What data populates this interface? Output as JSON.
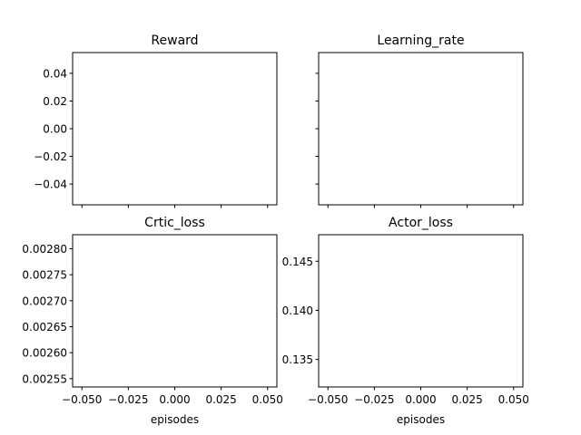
{
  "chart_data": [
    {
      "type": "line",
      "title": "Reward",
      "xlabel": "",
      "ylabel": "",
      "x": [],
      "series": [
        {
          "values": []
        }
      ],
      "xlim": [
        -0.055,
        0.055
      ],
      "ylim": [
        -0.055,
        0.055
      ],
      "xticks": [
        -0.05,
        -0.025,
        0.0,
        0.025,
        0.05
      ],
      "xtick_labels": [],
      "yticks": [
        -0.04,
        -0.02,
        0.0,
        0.02,
        0.04
      ],
      "ytick_labels": [
        "−0.04",
        "−0.02",
        "0.00",
        "0.02",
        "0.04"
      ],
      "grid": false
    },
    {
      "type": "line",
      "title": "Learning_rate",
      "xlabel": "",
      "ylabel": "",
      "x": [],
      "series": [
        {
          "values": []
        }
      ],
      "xlim": [
        -0.055,
        0.055
      ],
      "ylim": [
        -0.055,
        0.055
      ],
      "xticks": [
        -0.05,
        -0.025,
        0.0,
        0.025,
        0.05
      ],
      "xtick_labels": [],
      "yticks": [
        -0.04,
        -0.02,
        0.0,
        0.02,
        0.04
      ],
      "ytick_labels": [],
      "grid": false
    },
    {
      "type": "line",
      "title": "Crtic_loss",
      "xlabel": "episodes",
      "ylabel": "",
      "x": [],
      "series": [
        {
          "values": []
        }
      ],
      "xlim": [
        -0.055,
        0.055
      ],
      "ylim": [
        0.002534,
        0.002827
      ],
      "xticks": [
        -0.05,
        -0.025,
        0.0,
        0.025,
        0.05
      ],
      "xtick_labels": [
        "−0.050",
        "−0.025",
        "0.000",
        "0.025",
        "0.050"
      ],
      "yticks": [
        0.00255,
        0.0026,
        0.00265,
        0.0027,
        0.00275,
        0.0028
      ],
      "ytick_labels": [
        "0.00255",
        "0.00260",
        "0.00265",
        "0.00270",
        "0.00275",
        "0.00280"
      ],
      "grid": false
    },
    {
      "type": "line",
      "title": "Actor_loss",
      "xlabel": "episodes",
      "ylabel": "",
      "x": [],
      "series": [
        {
          "values": []
        }
      ],
      "xlim": [
        -0.055,
        0.055
      ],
      "ylim": [
        0.1322,
        0.1477
      ],
      "xticks": [
        -0.05,
        -0.025,
        0.0,
        0.025,
        0.05
      ],
      "xtick_labels": [
        "−0.050",
        "−0.025",
        "0.000",
        "0.025",
        "0.050"
      ],
      "yticks": [
        0.135,
        0.14,
        0.145
      ],
      "ytick_labels": [
        "0.135",
        "0.140",
        "0.145"
      ],
      "grid": false
    }
  ]
}
